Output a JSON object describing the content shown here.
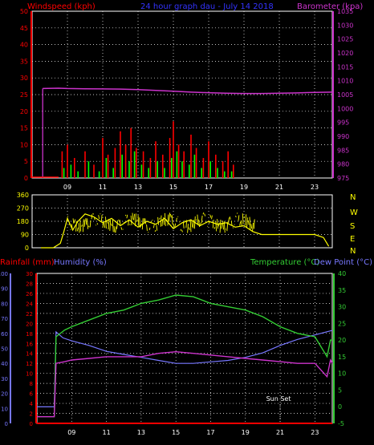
{
  "colors": {
    "background": "#000000",
    "frame": "#ffffff",
    "grid": "#ffffff",
    "wind_axis": "#ff0000",
    "baro_axis": "#cc33cc",
    "title": "#3333ff",
    "barometer": "#cc33cc",
    "wind_gust": "#ff0000",
    "wind_avg": "#00ff00",
    "wind_speed": "#ffffff",
    "direction": "#ffff00",
    "rain": "#ff0000",
    "humidity": "#7777ff",
    "temperature": "#33cc33",
    "dewpoint": "#cc33cc",
    "temp_axis": "#33cc33",
    "sunset": "#ffffff",
    "dir_letters": "#ffff00",
    "xtick": "#ffffff"
  },
  "chart_data": [
    {
      "type": "line",
      "id": "wind-baro",
      "title": "24 hour graph dau - July 14 2018",
      "left_label": "Windspeed (kph)",
      "right_label": "Barometer (kpa)",
      "x_ticks": [
        "09",
        "11",
        "13",
        "15",
        "17",
        "19",
        "21",
        "23"
      ],
      "xlim": [
        7,
        24
      ],
      "ylim_left": [
        0,
        50
      ],
      "y_ticks_left": [
        "0",
        "5",
        "10",
        "15",
        "20",
        "25",
        "30",
        "35",
        "40",
        "45",
        "50"
      ],
      "ylim_right": [
        975,
        1035
      ],
      "y_ticks_right": [
        "975",
        "980",
        "985",
        "990",
        "995",
        "1000",
        "1005",
        "1010",
        "1015",
        "1020",
        "1025",
        "1030",
        "1035"
      ],
      "barometer": {
        "x": [
          7.5,
          7.6,
          8.5,
          9,
          10,
          12,
          13,
          14,
          15,
          16,
          17,
          18,
          19,
          20,
          21,
          22,
          23,
          24
        ],
        "y": [
          null,
          1007.2,
          1007.3,
          1007.2,
          1007.1,
          1007.0,
          1006.8,
          1006.5,
          1006.2,
          1005.9,
          1005.7,
          1005.5,
          1005.4,
          1005.4,
          1005.5,
          1005.6,
          1005.8,
          1005.9
        ]
      },
      "wind_gust": {
        "x": [
          8.7,
          9.0,
          9.4,
          10.0,
          10.5,
          11.0,
          11.3,
          11.7,
          12.0,
          12.3,
          12.6,
          12.9,
          13.3,
          13.7,
          14.0,
          14.4,
          14.8,
          15.0,
          15.3,
          15.6,
          16.0,
          16.3,
          16.7,
          17.0,
          17.4,
          17.8,
          18.1,
          18.4
        ],
        "y": [
          8,
          10,
          6,
          8,
          4,
          12,
          7,
          9,
          14,
          10,
          15,
          9,
          8,
          6,
          11,
          7,
          12,
          17,
          10,
          8,
          13,
          9,
          6,
          11,
          7,
          5,
          8,
          4
        ]
      },
      "wind_avg": {
        "x": [
          8.8,
          9.2,
          9.6,
          10.2,
          10.8,
          11.2,
          11.6,
          12.1,
          12.5,
          12.8,
          13.2,
          13.6,
          14.1,
          14.5,
          14.9,
          15.2,
          15.5,
          15.9,
          16.2,
          16.6,
          17.1,
          17.5,
          17.9,
          18.3
        ],
        "y": [
          3,
          4,
          2,
          5,
          2,
          6,
          3,
          7,
          5,
          8,
          4,
          3,
          5,
          3,
          6,
          8,
          5,
          4,
          7,
          3,
          5,
          3,
          2,
          2
        ]
      }
    },
    {
      "type": "line",
      "id": "wind-direction",
      "x_ticks": [
        "09",
        "11",
        "13",
        "15",
        "17",
        "19",
        "21",
        "23"
      ],
      "xlim": [
        7,
        24
      ],
      "ylim": [
        0,
        360
      ],
      "y_ticks": [
        "0",
        "90",
        "180",
        "270",
        "360"
      ],
      "direction_letters": [
        "N",
        "W",
        "S",
        "E",
        "N"
      ],
      "direction": {
        "x": [
          7.5,
          8.2,
          8.6,
          8.8,
          9.0,
          9.3,
          9.6,
          10.0,
          10.5,
          11.0,
          11.5,
          12.0,
          12.5,
          13.0,
          13.5,
          14.0,
          14.5,
          15.0,
          15.5,
          16.0,
          16.5,
          17.0,
          17.5,
          18.0,
          18.5,
          19.0,
          19.5,
          20.0,
          21.0,
          22.0,
          23.0,
          23.5,
          23.8
        ],
        "y": [
          0,
          0,
          30,
          110,
          200,
          120,
          180,
          230,
          210,
          170,
          200,
          150,
          190,
          140,
          180,
          160,
          200,
          130,
          170,
          190,
          150,
          180,
          160,
          170,
          140,
          150,
          110,
          90,
          90,
          90,
          90,
          70,
          10
        ]
      }
    },
    {
      "type": "line",
      "id": "rain-humidity-temp",
      "left_label_rain": "Rainfall (mm)",
      "left_label_humidity": "Humidity (%)",
      "right_label_temp": "Temperature (°C)",
      "right_label_dew": "Dew Point (°C)",
      "annotation": "Sun Set",
      "annotation_x": 21.0,
      "x_ticks": [
        "09",
        "11",
        "13",
        "15",
        "17",
        "19",
        "21",
        "23"
      ],
      "xlim": [
        7,
        24
      ],
      "ylim_humidity": [
        0,
        100
      ],
      "y_ticks_humidity": [
        "0",
        "10",
        "20",
        "30",
        "40",
        "50",
        "60",
        "70",
        "80",
        "90",
        "100"
      ],
      "ylim_rain": [
        0,
        30
      ],
      "y_ticks_rain": [
        "0",
        "2",
        "4",
        "6",
        "8",
        "10",
        "12",
        "14",
        "16",
        "18",
        "20",
        "22",
        "24",
        "26",
        "28",
        "30"
      ],
      "ylim_temp": [
        -5,
        40
      ],
      "y_ticks_temp": [
        "-5",
        "0",
        "5",
        "10",
        "15",
        "20",
        "25",
        "30",
        "35",
        "40"
      ],
      "rainfall": {
        "x": [
          7,
          24
        ],
        "y": [
          0,
          0
        ]
      },
      "humidity": {
        "x": [
          7,
          8.0,
          8.1,
          8.5,
          9.0,
          10.0,
          11.0,
          12.0,
          13.0,
          14.0,
          15.0,
          16.0,
          17.0,
          18.0,
          19.0,
          20.0,
          21.0,
          22.0,
          23.0,
          24.0
        ],
        "y": [
          11,
          11,
          61,
          57,
          55,
          52,
          48,
          46,
          44,
          42,
          40,
          40,
          41,
          42,
          44,
          47,
          52,
          56,
          59,
          62
        ]
      },
      "temperature": {
        "x": [
          7,
          8.0,
          8.1,
          8.6,
          9.0,
          10.0,
          11.0,
          12.0,
          13.0,
          14.0,
          15.0,
          16.0,
          17.0,
          18.0,
          19.0,
          20.0,
          21.0,
          22.0,
          23.0,
          23.7,
          23.9,
          24.0
        ],
        "y": [
          -3,
          -3,
          21,
          23,
          24,
          26,
          28,
          29,
          31,
          32,
          33.5,
          33,
          31,
          30,
          29,
          27,
          24,
          22,
          21,
          15,
          20,
          20
        ]
      },
      "dewpoint": {
        "x": [
          7,
          8.0,
          8.1,
          8.6,
          9.0,
          10.0,
          11.0,
          12.0,
          13.0,
          14.0,
          15.0,
          16.0,
          17.0,
          18.0,
          19.0,
          20.0,
          21.0,
          22.0,
          23.0,
          23.7,
          23.9,
          24.0
        ],
        "y": [
          -3,
          -3,
          13,
          13.5,
          14,
          14.5,
          15,
          15,
          15,
          16,
          16.5,
          16,
          15.5,
          15,
          14.5,
          14,
          13.5,
          13,
          13,
          9,
          14,
          13
        ]
      }
    }
  ]
}
